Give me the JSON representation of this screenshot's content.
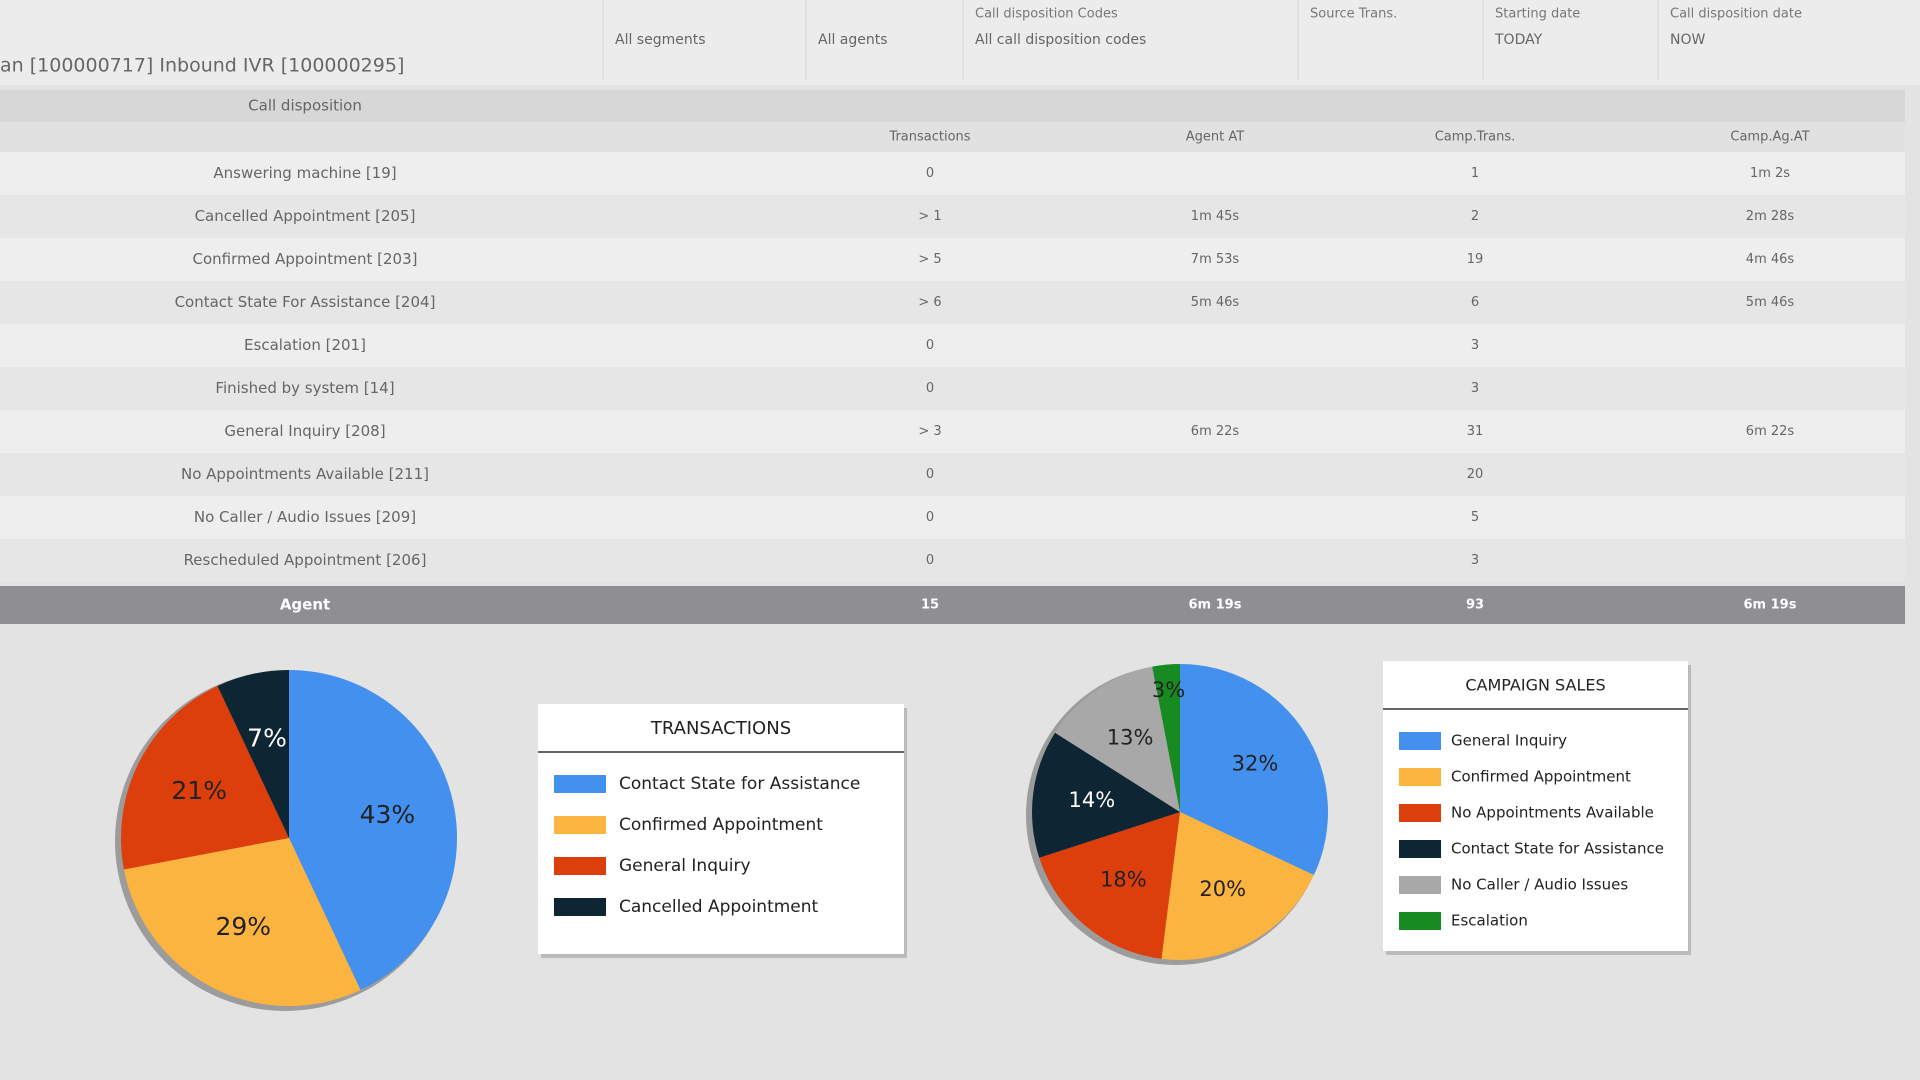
{
  "filters": [
    {
      "value": "All segments"
    },
    {
      "value": "All agents"
    },
    {
      "label": "Call disposition Codes",
      "value": "All call disposition codes"
    },
    {
      "label": "Source Trans."
    },
    {
      "label": "Starting date",
      "value": "TODAY"
    },
    {
      "label": "Call disposition date",
      "value": "NOW"
    }
  ],
  "report_title": "an [100000717] Inbound IVR [100000295]",
  "table": {
    "group_header": "Call disposition",
    "columns": [
      "Transactions",
      "Agent AT",
      "Camp.Trans.",
      "Camp.Ag.AT"
    ],
    "rows": [
      [
        "Answering machine [19]",
        "0",
        null,
        "1",
        "1m 2s"
      ],
      [
        "Cancelled Appointment [205]",
        "> 1",
        "1m 45s",
        "2",
        "2m 28s"
      ],
      [
        "Confirmed Appointment [203]",
        "> 5",
        "7m 53s",
        "19",
        "4m 46s"
      ],
      [
        "Contact State For Assistance [204]",
        "> 6",
        "5m 46s",
        "6",
        "5m 46s"
      ],
      [
        "Escalation [201]",
        "0",
        null,
        "3",
        null
      ],
      [
        "Finished by system [14]",
        "0",
        null,
        "3",
        null
      ],
      [
        "General Inquiry [208]",
        "> 3",
        "6m 22s",
        "31",
        "6m 22s"
      ],
      [
        "No Appointments Available [211]",
        "0",
        null,
        "20",
        null
      ],
      [
        "No Caller / Audio Issues [209]",
        "0",
        null,
        "5",
        null
      ],
      [
        "Rescheduled Appointment [206]",
        "0",
        null,
        "3",
        null
      ]
    ],
    "footer": [
      "Agent",
      "15",
      "6m 19s",
      "93",
      "6m 19s"
    ]
  },
  "chart_data": [
    {
      "type": "pie",
      "title": "TRANSACTIONS",
      "categories": [
        "Contact State for Assistance",
        "Confirmed Appointment",
        "General Inquiry",
        "Cancelled Appointment"
      ],
      "values": [
        43,
        29,
        21,
        7
      ],
      "value_labels": [
        "43%",
        "29%",
        "21%",
        "7%"
      ],
      "colors": [
        "#4390ee",
        "#fbb440",
        "#dc3f0b",
        "#0e2633"
      ]
    },
    {
      "type": "pie",
      "title": "CAMPAIGN SALES",
      "categories": [
        "General Inquiry",
        "Confirmed Appointment",
        "No Appointments Available",
        "Contact State for Assistance",
        "No Caller / Audio Issues",
        "Escalation"
      ],
      "values": [
        32,
        20,
        18,
        14,
        13,
        3
      ],
      "value_labels": [
        "32%",
        "20%",
        "18%",
        "14%",
        "13%",
        "3%"
      ],
      "colors": [
        "#4390ee",
        "#fbb440",
        "#dc3f0b",
        "#0e2633",
        "#a8a8a8",
        "#178a22"
      ]
    }
  ]
}
